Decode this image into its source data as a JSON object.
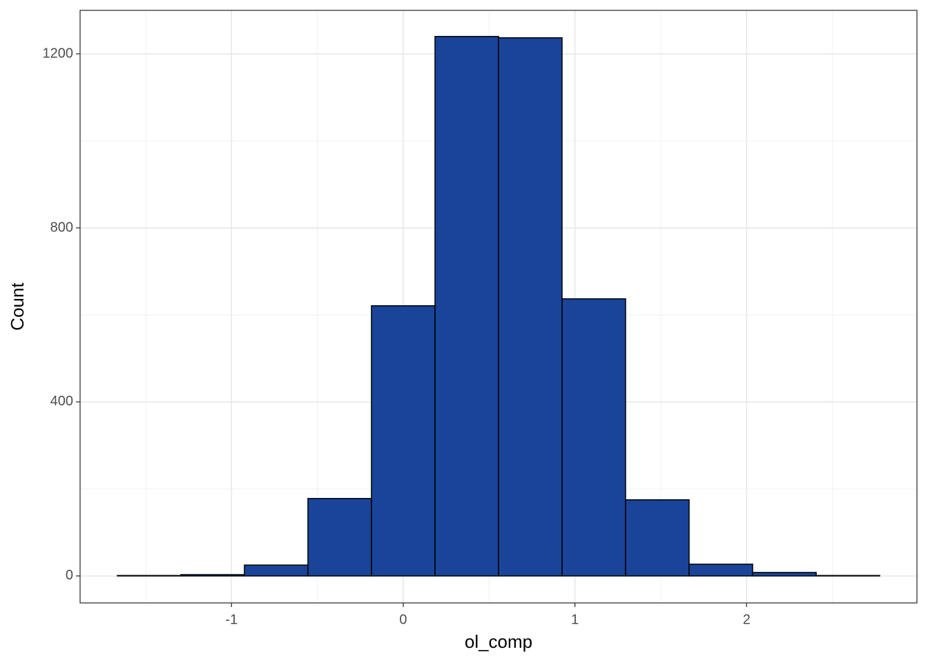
{
  "chart_data": {
    "type": "histogram",
    "x_label": "ol_comp",
    "y_label": "Count",
    "bins": [
      -1.665,
      -1.295,
      -0.925,
      -0.555,
      -0.185,
      0.185,
      0.555,
      0.925,
      1.295,
      1.665,
      2.035,
      2.405,
      2.775
    ],
    "values": [
      1,
      3,
      25,
      178,
      621,
      1240,
      1237,
      637,
      175,
      27,
      8,
      1
    ],
    "color": "#1a4499",
    "xlim": [
      -1.882,
      2.992
    ],
    "xticks": [
      -1,
      0,
      1,
      2
    ],
    "x_minor_grid": [
      -1.5,
      -0.5,
      0.5,
      1.5,
      2.5
    ],
    "ylim": [
      -62,
      1300
    ],
    "yticks": [
      0,
      400,
      800,
      1200
    ],
    "y_minor_grid": [
      200,
      600,
      1000
    ],
    "grid": true
  }
}
